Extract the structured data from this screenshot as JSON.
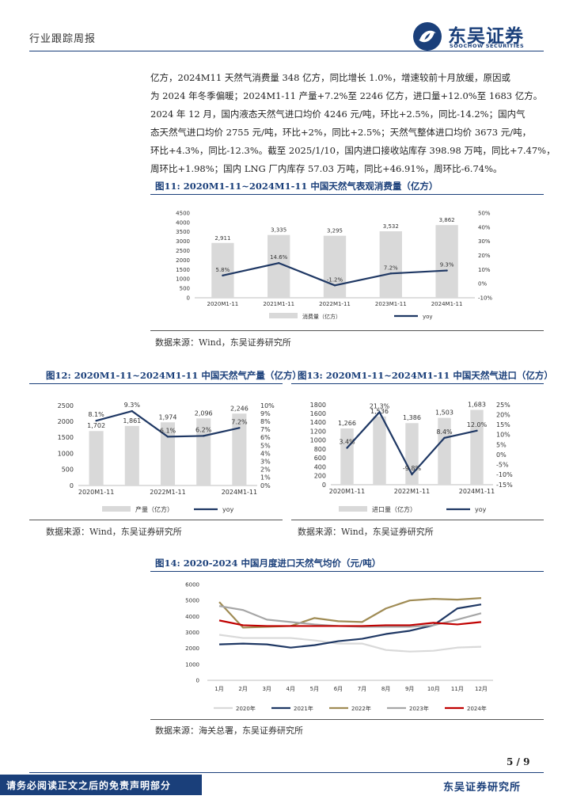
{
  "header": {
    "category": "行业跟踪周报",
    "brand_cn": "东吴证券",
    "brand_en": "SOOCHOW SECURITIES"
  },
  "paragraph_lines": [
    "亿方，2024M11 天然气消费量 348 亿方，同比增长 1.0%，增速较前十月放缓，原因或",
    "为 2024 年冬季偏暖；2024M1-11 产量+7.2%至 2246 亿方，进口量+12.0%至 1683 亿方。",
    "2024 年 12 月，国内液态天然气进口均价 4246 元/吨，环比+2.5%，同比-14.2%；国内气",
    "态天然气进口均价 2755 元/吨，环比+2%，同比+2.5%；天然气整体进口均价 3673 元/吨，",
    "环比+4.3%，同比-12.3%。截至 2025/1/10，国内进口接收站库存 398.98 万吨，同比+7.47%，",
    "周环比+1.98%；国内 LNG 厂内库存 57.03 万吨，同比+46.91%，周环比-6.74%。"
  ],
  "figures": {
    "fig11": {
      "title": "图11:  2020M1-11~2024M1-11 中国天然气表观消费量（亿方）",
      "source": "数据来源：Wind，东吴证券研究所"
    },
    "fig12": {
      "title": "图12:  2020M1-11~2024M1-11 中国天然气产量（亿方）",
      "source": "数据来源：Wind，东吴证券研究所"
    },
    "fig13": {
      "title": "图13:  2020M1-11~2024M1-11 中国天然气进口（亿方）",
      "source": "数据来源：Wind，东吴证券研究所"
    },
    "fig14": {
      "title": "图14:  2020-2024 中国月度进口天然气均价（元/吨）",
      "source": "数据来源：海关总署，东吴证券研究所"
    }
  },
  "chart_data": [
    {
      "id": "fig11",
      "type": "bar+line",
      "categories": [
        "2020M1-11",
        "2021M1-11",
        "2022M1-11",
        "2023M1-11",
        "2024M1-11"
      ],
      "bar_labels": [
        "2,911",
        "3,335",
        "3,295",
        "3,532",
        "3,862"
      ],
      "line_labels": [
        "5.8%",
        "14.6%",
        "-1.2%",
        "7.2%",
        "9.3%"
      ],
      "series": [
        {
          "name": "消费量（亿方）",
          "axis": "left",
          "values": [
            2911,
            3335,
            3295,
            3532,
            3862
          ]
        },
        {
          "name": "yoy",
          "axis": "right",
          "values": [
            5.8,
            14.6,
            -1.2,
            7.2,
            9.3
          ]
        }
      ],
      "left_ticks": [
        "0",
        "500",
        "1000",
        "1500",
        "2000",
        "2500",
        "3000",
        "3500",
        "4000",
        "4500"
      ],
      "right_ticks": [
        "-10%",
        "0%",
        "10%",
        "20%",
        "30%",
        "40%",
        "50%"
      ],
      "ylim_left": [
        0,
        4500
      ],
      "ylim_right": [
        -10,
        50
      ]
    },
    {
      "id": "fig12",
      "type": "bar+line",
      "categories": [
        "2020M1-11",
        "2021M1-11",
        "2022M1-11",
        "2023M1-11",
        "2024M1-11"
      ],
      "x_tick_labels": [
        "2020M1-11",
        "",
        "2022M1-11",
        "",
        "2024M1-11"
      ],
      "bar_labels": [
        "1,702",
        "1,861",
        "1,974",
        "2,096",
        "2,246"
      ],
      "line_labels": [
        "8.1%",
        "9.3%",
        "6.1%",
        "6.2%",
        "7.2%"
      ],
      "series": [
        {
          "name": "产量（亿方）",
          "axis": "left",
          "values": [
            1702,
            1861,
            1974,
            2096,
            2246
          ]
        },
        {
          "name": "yoy",
          "axis": "right",
          "values": [
            8.1,
            9.3,
            6.1,
            6.2,
            7.2
          ]
        }
      ],
      "left_ticks": [
        "0",
        "500",
        "1000",
        "1500",
        "2000",
        "2500"
      ],
      "right_ticks": [
        "0%",
        "1%",
        "2%",
        "3%",
        "4%",
        "5%",
        "6%",
        "7%",
        "8%",
        "9%",
        "10%"
      ],
      "ylim_left": [
        0,
        2500
      ],
      "ylim_right": [
        0,
        10
      ]
    },
    {
      "id": "fig13",
      "type": "bar+line",
      "categories": [
        "2020M1-11",
        "2021M1-11",
        "2022M1-11",
        "2023M1-11",
        "2024M1-11"
      ],
      "x_tick_labels": [
        "2020M1-11",
        "",
        "2022M1-11",
        "",
        "2024M1-11"
      ],
      "bar_labels": [
        "1,266",
        "1,536",
        "1,386",
        "1,503",
        "1,683"
      ],
      "line_labels": [
        "3.4%",
        "21.3%",
        "-9.8%",
        "8.4%",
        "12.0%"
      ],
      "series": [
        {
          "name": "进口量（亿方）",
          "axis": "left",
          "values": [
            1266,
            1536,
            1386,
            1503,
            1683
          ]
        },
        {
          "name": "yoy",
          "axis": "right",
          "values": [
            3.4,
            21.3,
            -9.8,
            8.4,
            12.0
          ]
        }
      ],
      "left_ticks": [
        "0",
        "200",
        "400",
        "600",
        "800",
        "1000",
        "1200",
        "1400",
        "1600",
        "1800"
      ],
      "right_ticks": [
        "-15%",
        "-10%",
        "-5%",
        "0%",
        "5%",
        "10%",
        "15%",
        "20%",
        "25%"
      ],
      "ylim_left": [
        0,
        1800
      ],
      "ylim_right": [
        -15,
        25
      ]
    },
    {
      "id": "fig14",
      "type": "line",
      "categories": [
        "1月",
        "2月",
        "3月",
        "4月",
        "5月",
        "6月",
        "7月",
        "8月",
        "9月",
        "10月",
        "11月",
        "12月"
      ],
      "series": [
        {
          "name": "2020年",
          "color": "#d9d9d9",
          "values": [
            2850,
            2650,
            2650,
            2650,
            2500,
            2300,
            2300,
            1900,
            1800,
            1850,
            2050,
            2100
          ]
        },
        {
          "name": "2021年",
          "color": "#1f3864",
          "values": [
            2250,
            2300,
            2250,
            2050,
            2200,
            2450,
            2600,
            2900,
            3100,
            3450,
            4500,
            4750
          ]
        },
        {
          "name": "2022年",
          "color": "#a08c55",
          "values": [
            4900,
            3300,
            3350,
            3400,
            3900,
            3700,
            3650,
            4500,
            5000,
            5100,
            5050,
            5150
          ]
        },
        {
          "name": "2023年",
          "color": "#a6a6a6",
          "values": [
            4650,
            4400,
            3800,
            3650,
            3500,
            3400,
            3350,
            3350,
            3350,
            3450,
            3800,
            4200
          ]
        },
        {
          "name": "2024年",
          "color": "#c00000",
          "values": [
            3750,
            3450,
            3400,
            3400,
            3400,
            3400,
            3400,
            3450,
            3450,
            3600,
            3500,
            3650
          ]
        }
      ],
      "y_ticks": [
        "0",
        "1000",
        "2000",
        "3000",
        "4000",
        "5000",
        "6000"
      ],
      "ylim": [
        0,
        6000
      ]
    }
  ],
  "page": {
    "number": "5 / 9"
  },
  "footer": {
    "disclaimer": "请务必阅读正文之后的免责声明部分",
    "brand": "东吴证券研究所"
  }
}
